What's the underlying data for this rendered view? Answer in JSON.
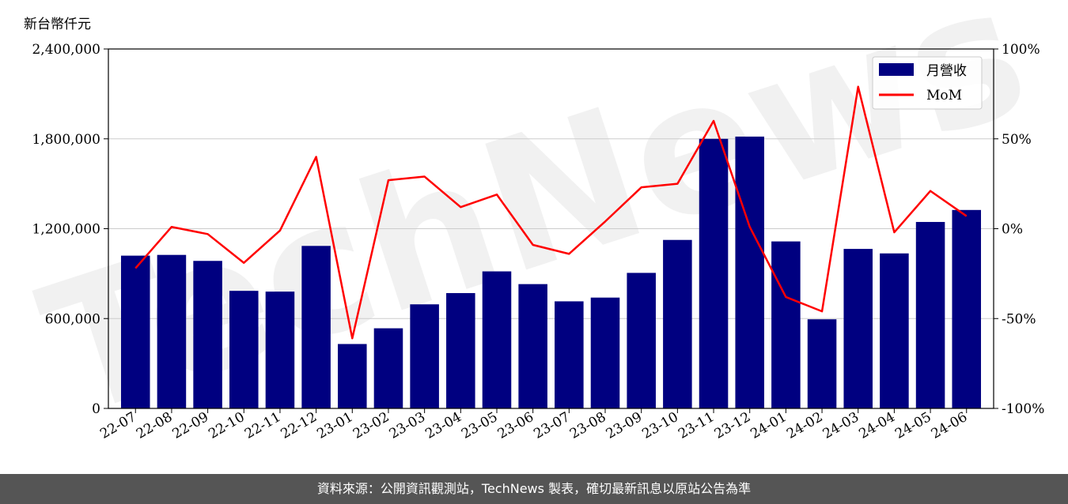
{
  "chart_data": {
    "type": "bar",
    "ylabel_left": "新台幣仟元",
    "ylim_left": [
      0,
      2400000
    ],
    "yticks_left": [
      "0",
      "600,000",
      "1,200,000",
      "1,800,000",
      "2,400,000"
    ],
    "ylim_right": [
      -100,
      100
    ],
    "yticks_right": [
      "-100%",
      "-50%",
      "0%",
      "50%",
      "100%"
    ],
    "categories": [
      "22-07",
      "22-08",
      "22-09",
      "22-10",
      "22-11",
      "22-12",
      "23-01",
      "23-02",
      "23-03",
      "23-04",
      "23-05",
      "23-06",
      "23-07",
      "23-08",
      "23-09",
      "23-10",
      "23-11",
      "23-12",
      "24-01",
      "24-02",
      "24-03",
      "24-04",
      "24-05",
      "24-06"
    ],
    "series": [
      {
        "name": "月營收",
        "type": "bar",
        "color": "#000080",
        "values": [
          1020000,
          1025000,
          985000,
          785000,
          780000,
          1085000,
          430000,
          535000,
          695000,
          770000,
          915000,
          830000,
          715000,
          740000,
          905000,
          1125000,
          1800000,
          1815000,
          1115000,
          595000,
          1065000,
          1035000,
          1245000,
          1325000
        ]
      },
      {
        "name": "MoM",
        "type": "line",
        "color": "#ff0000",
        "axis": "right",
        "values": [
          -22,
          1,
          -3,
          -19,
          -1,
          40,
          -61,
          27,
          29,
          12,
          19,
          -9,
          -14,
          4,
          23,
          25,
          60,
          1,
          -38,
          -46,
          79,
          -2,
          21,
          7
        ]
      }
    ],
    "grid": true,
    "legend_position": "top-right",
    "watermark": "TechNews"
  },
  "footer": {
    "text": "資料來源：公開資訊觀測站，TechNews 製表，確切最新訊息以原站公告為準"
  }
}
